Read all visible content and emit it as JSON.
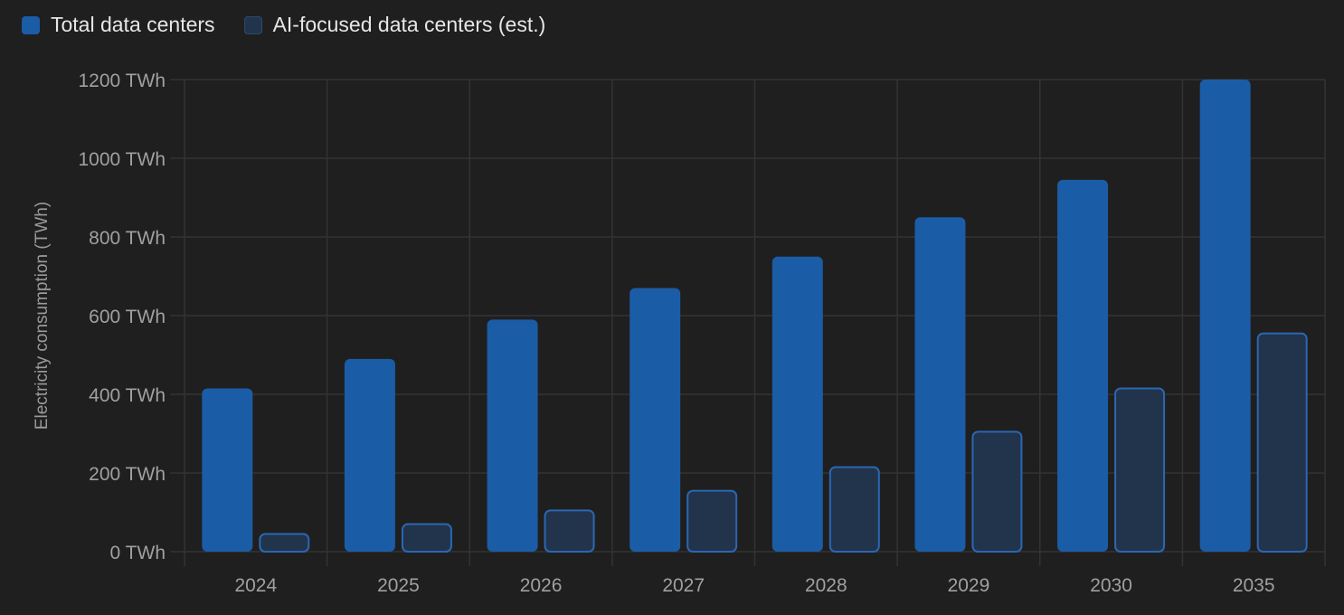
{
  "chart_data": {
    "type": "bar",
    "categories": [
      "2024",
      "2025",
      "2026",
      "2027",
      "2028",
      "2029",
      "2030",
      "2035"
    ],
    "series": [
      {
        "name": "Total data centers",
        "values": [
          415,
          490,
          590,
          670,
          750,
          850,
          945,
          1200
        ],
        "color": "#1b5ca6"
      },
      {
        "name": "AI-focused data centers (est.)",
        "values": [
          45,
          70,
          105,
          155,
          215,
          305,
          415,
          555
        ],
        "color": "#22344b",
        "border_color": "#2a67b4"
      }
    ],
    "ylabel": "Electricity consumption (TWh)",
    "ylim": [
      0,
      1200
    ],
    "yticks": [
      0,
      200,
      400,
      600,
      800,
      1000,
      1200
    ],
    "ytick_labels": [
      "0 TWh",
      "200 TWh",
      "400 TWh",
      "600 TWh",
      "800 TWh",
      "1000 TWh",
      "1200 TWh"
    ],
    "grid": true,
    "legend_position": "top-left"
  },
  "colors": {
    "background": "#1f1f1f",
    "grid": "#333333",
    "tick_text": "#a0a0a0"
  }
}
